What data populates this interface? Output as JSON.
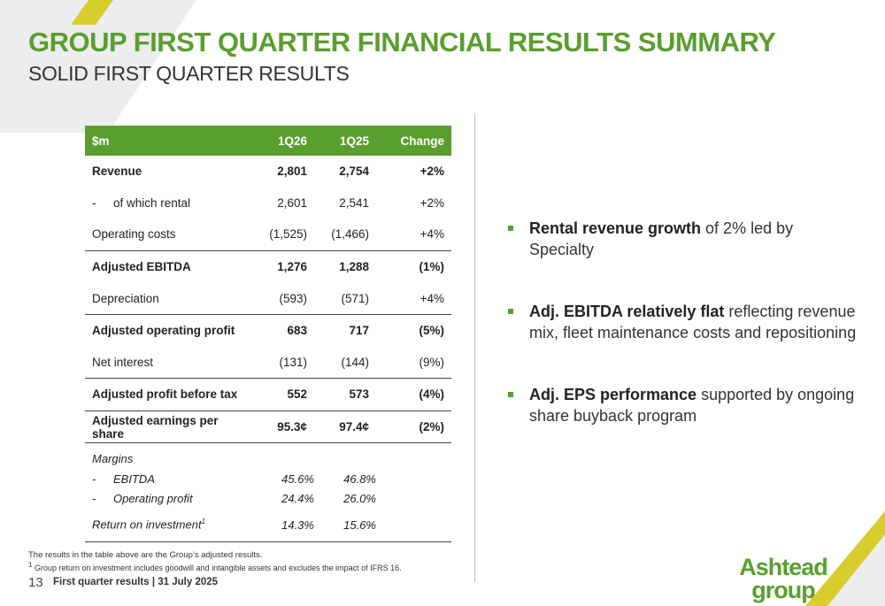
{
  "header": {
    "title": "GROUP FIRST QUARTER FINANCIAL RESULTS SUMMARY",
    "subtitle": "SOLID FIRST QUARTER RESULTS"
  },
  "colors": {
    "accent": "#5a9e2f",
    "stripe": "#d7cd2d",
    "watermark": "#ededed"
  },
  "table": {
    "headers": [
      "$m",
      "1Q26",
      "1Q25",
      "Change"
    ],
    "rows": [
      {
        "label": "Revenue",
        "q26": "2,801",
        "q25": "2,754",
        "change": "+2%"
      },
      {
        "label": "of which rental",
        "q26": "2,601",
        "q25": "2,541",
        "change": "+2%",
        "dash": "-"
      },
      {
        "label": "Operating costs",
        "q26": "(1,525)",
        "q25": "(1,466)",
        "change": "+4%"
      },
      {
        "label": "Adjusted EBITDA",
        "q26": "1,276",
        "q25": "1,288",
        "change": "(1%)"
      },
      {
        "label": "Depreciation",
        "q26": "(593)",
        "q25": "(571)",
        "change": "+4%"
      },
      {
        "label": "Adjusted operating profit",
        "q26": "683",
        "q25": "717",
        "change": "(5%)"
      },
      {
        "label": "Net interest",
        "q26": "(131)",
        "q25": "(144)",
        "change": "(9%)"
      },
      {
        "label": "Adjusted profit before tax",
        "q26": "552",
        "q25": "573",
        "change": "(4%)"
      },
      {
        "label": "Adjusted earnings per share",
        "q26": "95.3¢",
        "q25": "97.4¢",
        "change": "(2%)"
      }
    ],
    "margins": {
      "label": "Margins",
      "ebitda": {
        "dash": "-",
        "label": "EBITDA",
        "q26": "45.6%",
        "q25": "46.8%"
      },
      "operating": {
        "dash": "-",
        "label": "Operating profit",
        "q26": "24.4%",
        "q25": "26.0%"
      },
      "roi": {
        "label": "Return on investment",
        "sup": "1",
        "q26": "14.3%",
        "q25": "15.6%"
      }
    }
  },
  "bullets": [
    {
      "strong": "Rental revenue growth",
      "text": " of 2% led by Specialty"
    },
    {
      "strong": "Adj. EBITDA relatively flat",
      "text": " reflecting revenue mix, fleet maintenance costs and repositioning"
    },
    {
      "strong": "Adj. EPS performance",
      "text": " supported by ongoing share buyback program"
    }
  ],
  "footnotes": {
    "note1": "The results in the table above are the Group’s adjusted results.",
    "note2_sup": "1",
    "note2": " Group return on investment includes goodwill and intangible assets and excludes the impact of IFRS 16."
  },
  "footer": {
    "page_number": "13",
    "text": "First quarter results | 31 July 2025"
  },
  "logo": {
    "line1": "Ashtead",
    "line2": "group"
  }
}
